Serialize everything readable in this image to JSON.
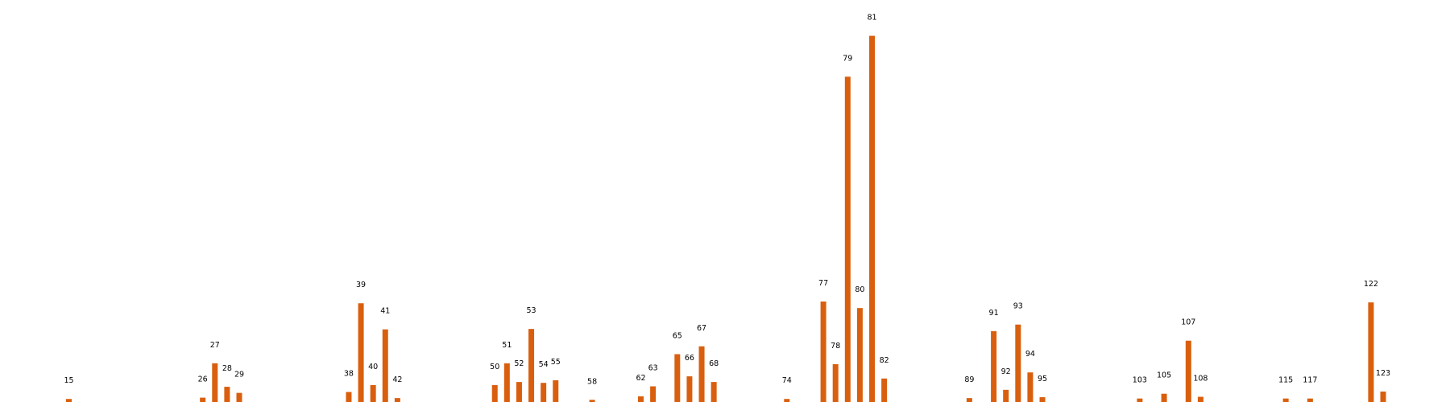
{
  "chart_data": {
    "type": "bar",
    "title": "",
    "xlabel": "",
    "ylabel": "",
    "axes_visible": false,
    "grid": false,
    "bar_color": "#d95f0e",
    "categories": [
      15,
      26,
      27,
      28,
      29,
      38,
      39,
      40,
      41,
      42,
      50,
      51,
      52,
      53,
      54,
      55,
      58,
      62,
      63,
      65,
      66,
      67,
      68,
      74,
      77,
      78,
      79,
      80,
      81,
      82,
      89,
      91,
      92,
      93,
      94,
      95,
      103,
      105,
      107,
      108,
      115,
      117,
      122,
      123
    ],
    "labels": [
      "15",
      "26",
      "27",
      "28",
      "29",
      "38",
      "39",
      "40",
      "41",
      "42",
      "50",
      "51",
      "52",
      "53",
      "54",
      "55",
      "58",
      "62",
      "63",
      "65",
      "66",
      "67",
      "68",
      "74",
      "77",
      "78",
      "79",
      "80",
      "81",
      "82",
      "89",
      "91",
      "92",
      "93",
      "94",
      "95",
      "103",
      "105",
      "107",
      "108",
      "115",
      "117",
      "122",
      "123"
    ],
    "values": [
      0.7,
      1.0,
      8.9,
      3.5,
      2.1,
      2.3,
      22.7,
      3.9,
      16.7,
      0.9,
      3.9,
      8.9,
      4.6,
      16.8,
      4.4,
      5.0,
      0.5,
      1.3,
      3.6,
      11.0,
      5.9,
      12.8,
      4.6,
      0.7,
      23.1,
      8.7,
      74.8,
      21.6,
      84.2,
      5.4,
      0.9,
      16.3,
      2.8,
      17.8,
      6.8,
      1.1,
      0.8,
      1.9,
      14.1,
      1.2,
      0.8,
      0.8,
      22.9,
      2.4
    ],
    "ylim": [
      0,
      88
    ]
  }
}
